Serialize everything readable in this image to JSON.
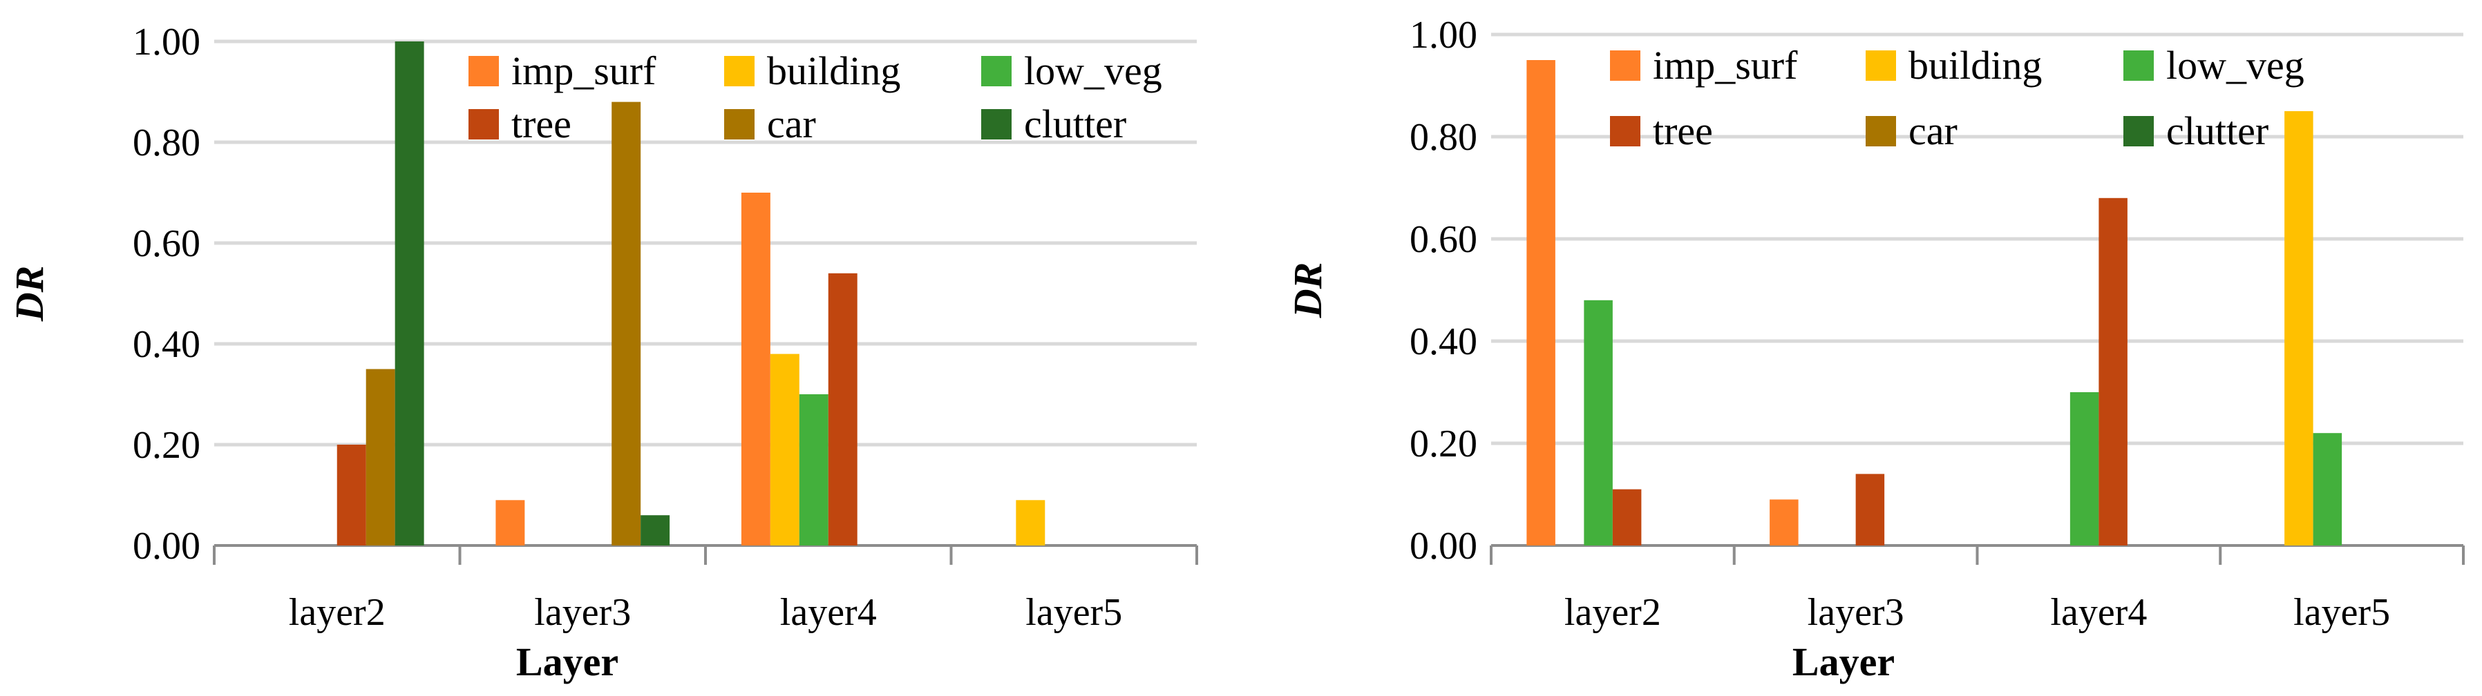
{
  "chart_data": [
    {
      "type": "bar",
      "title": "",
      "xlabel": "Layer",
      "ylabel": "DR",
      "ylim": [
        0,
        1
      ],
      "yticks": [
        "0.00",
        "0.20",
        "0.40",
        "0.60",
        "0.80",
        "1.00"
      ],
      "grid": true,
      "legend_position": "top-right",
      "categories": [
        "layer2",
        "layer3",
        "layer4",
        "layer5"
      ],
      "series": [
        {
          "name": "imp_surf",
          "color": "#ff7f27",
          "values": [
            0,
            0.09,
            0.7,
            0
          ]
        },
        {
          "name": "tree",
          "color": "#c0460f",
          "values": [
            0.2,
            0,
            0.54,
            0
          ]
        },
        {
          "name": "building",
          "color": "#ffc000",
          "values": [
            0,
            0,
            0.38,
            0.09
          ]
        },
        {
          "name": "car",
          "color": "#a87500",
          "values": [
            0.35,
            0.88,
            0,
            0
          ]
        },
        {
          "name": "low_veg",
          "color": "#43b03c",
          "values": [
            0,
            0,
            0.3,
            0
          ]
        },
        {
          "name": "clutter",
          "color": "#2a6e25",
          "values": [
            1.0,
            0.06,
            0,
            0
          ]
        }
      ]
    },
    {
      "type": "bar",
      "title": "",
      "xlabel": "Layer",
      "ylabel": "DR",
      "ylim": [
        0,
        1
      ],
      "yticks": [
        "0.00",
        "0.20",
        "0.40",
        "0.60",
        "0.80",
        "1.00"
      ],
      "grid": true,
      "legend_position": "top-right",
      "categories": [
        "layer2",
        "layer3",
        "layer4",
        "layer5"
      ],
      "series": [
        {
          "name": "imp_surf",
          "color": "#ff7f27",
          "values": [
            0.95,
            0.09,
            0,
            0
          ]
        },
        {
          "name": "tree",
          "color": "#c0460f",
          "values": [
            0.11,
            0.14,
            0.68,
            0
          ]
        },
        {
          "name": "building",
          "color": "#ffc000",
          "values": [
            0,
            0,
            0,
            0.85
          ]
        },
        {
          "name": "car",
          "color": "#a87500",
          "values": [
            0,
            0,
            0,
            0
          ]
        },
        {
          "name": "low_veg",
          "color": "#43b03c",
          "values": [
            0.48,
            0,
            0.3,
            0.22
          ]
        },
        {
          "name": "clutter",
          "color": "#2a6e25",
          "values": [
            0,
            0,
            0,
            0
          ]
        }
      ]
    }
  ]
}
